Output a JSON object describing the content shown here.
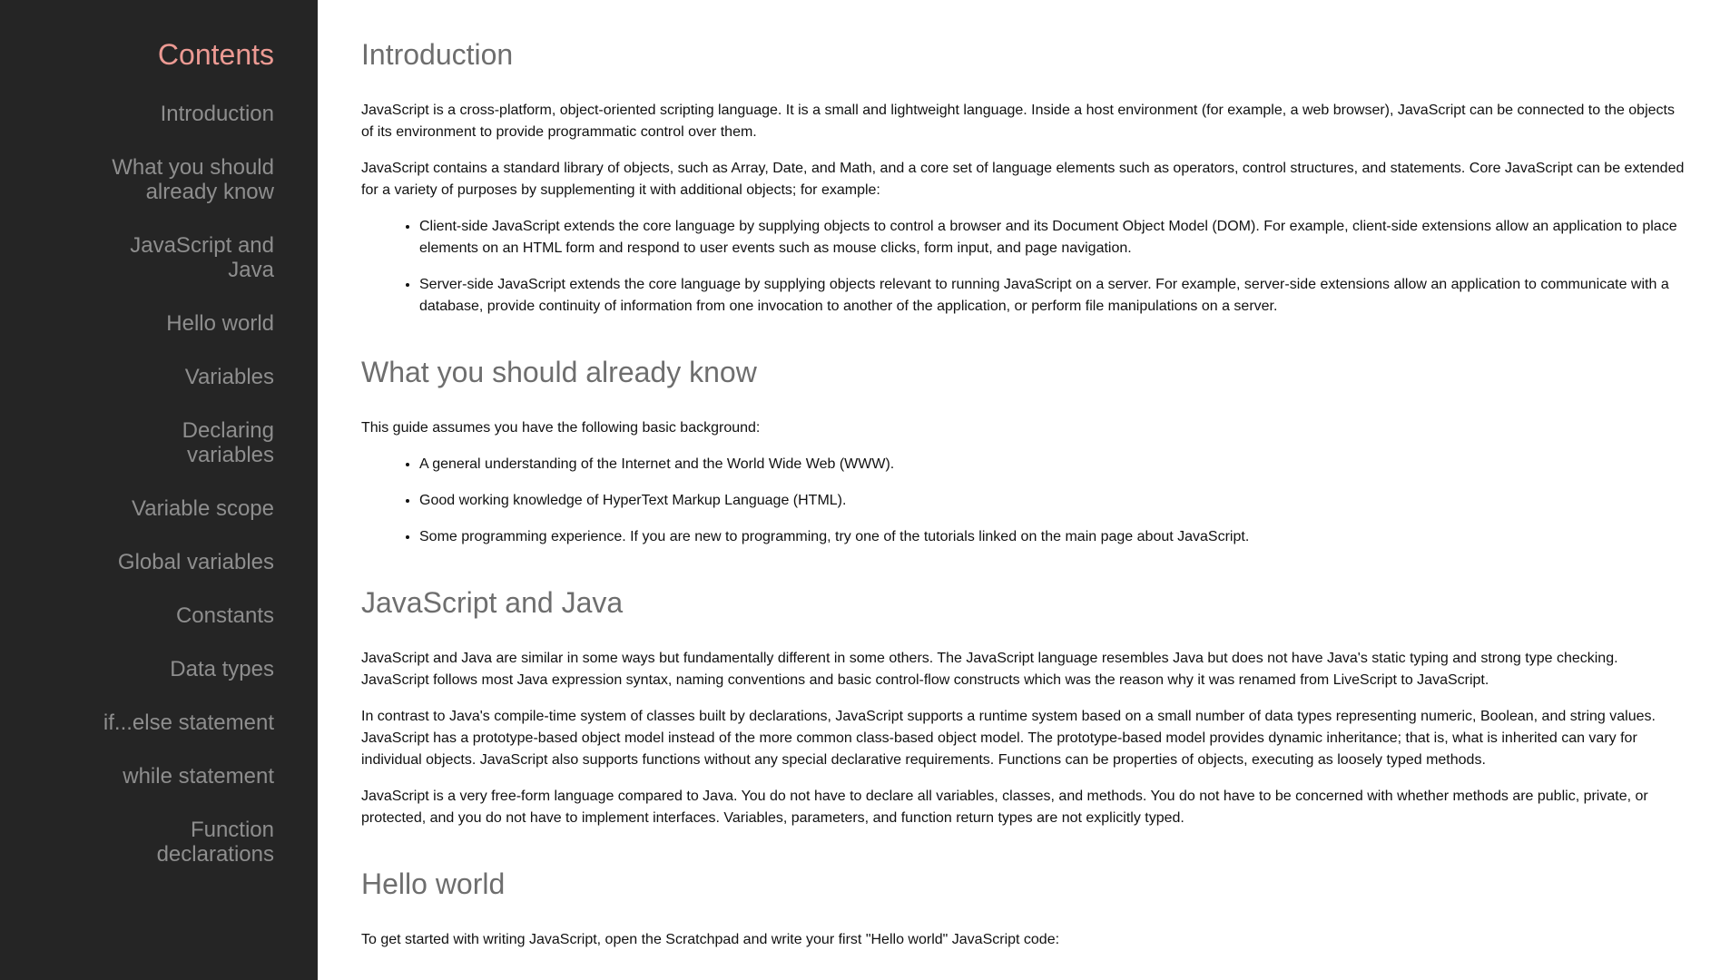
{
  "sidebar": {
    "title": "Contents",
    "items": [
      {
        "label": "Introduction"
      },
      {
        "label": "What you should already know"
      },
      {
        "label": "JavaScript and Java"
      },
      {
        "label": "Hello world"
      },
      {
        "label": "Variables"
      },
      {
        "label": "Declaring variables"
      },
      {
        "label": "Variable scope"
      },
      {
        "label": "Global variables"
      },
      {
        "label": "Constants"
      },
      {
        "label": "Data types"
      },
      {
        "label": "if...else statement"
      },
      {
        "label": "while statement"
      },
      {
        "label": "Function declarations"
      }
    ]
  },
  "main": {
    "sections": [
      {
        "heading": "Introduction",
        "paragraphs": [
          "JavaScript is a cross-platform, object-oriented scripting language. It is a small and lightweight language. Inside a host environment (for example, a web browser), JavaScript can be connected to the objects of its environment to provide programmatic control over them.",
          "JavaScript contains a standard library of objects, such as Array, Date, and Math, and a core set of language elements such as operators, control structures, and statements. Core JavaScript can be extended for a variety of purposes by supplementing it with additional objects; for example:"
        ],
        "bullets": [
          "Client-side JavaScript extends the core language by supplying objects to control a browser and its Document Object Model (DOM). For example, client-side extensions allow an application to place elements on an HTML form and respond to user events such as mouse clicks, form input, and page navigation.",
          "Server-side JavaScript extends the core language by supplying objects relevant to running JavaScript on a server. For example, server-side extensions allow an application to communicate with a database, provide continuity of information from one invocation to another of the application, or perform file manipulations on a server."
        ]
      },
      {
        "heading": "What you should already know",
        "paragraphs": [
          "This guide assumes you have the following basic background:"
        ],
        "bullets": [
          "A general understanding of the Internet and the World Wide Web (WWW).",
          "Good working knowledge of HyperText Markup Language (HTML).",
          "Some programming experience. If you are new to programming, try one of the tutorials linked on the main page about JavaScript."
        ]
      },
      {
        "heading": "JavaScript and Java",
        "paragraphs": [
          "JavaScript and Java are similar in some ways but fundamentally different in some others. The JavaScript language resembles Java but does not have Java's static typing and strong type checking. JavaScript follows most Java expression syntax, naming conventions and basic control-flow constructs which was the reason why it was renamed from LiveScript to JavaScript.",
          "In contrast to Java's compile-time system of classes built by declarations, JavaScript supports a runtime system based on a small number of data types representing numeric, Boolean, and string values. JavaScript has a prototype-based object model instead of the more common class-based object model. The prototype-based model provides dynamic inheritance; that is, what is inherited can vary for individual objects. JavaScript also supports functions without any special declarative requirements. Functions can be properties of objects, executing as loosely typed methods.",
          "JavaScript is a very free-form language compared to Java. You do not have to declare all variables, classes, and methods. You do not have to be concerned with whether methods are public, private, or protected, and you do not have to implement interfaces. Variables, parameters, and function return types are not explicitly typed."
        ],
        "bullets": []
      },
      {
        "heading": "Hello world",
        "paragraphs": [
          "To get started with writing JavaScript, open the Scratchpad and write your first \"Hello world\" JavaScript code:"
        ],
        "bullets": []
      }
    ]
  }
}
